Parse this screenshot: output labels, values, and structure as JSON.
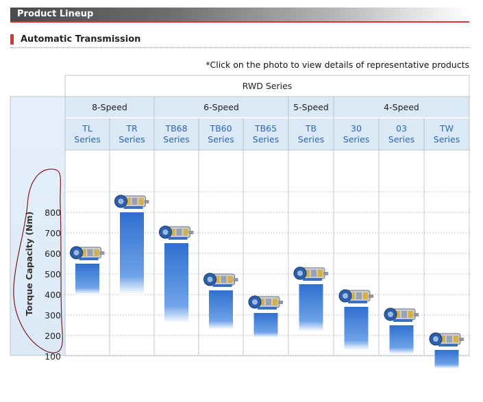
{
  "header": {
    "title": "Product Lineup"
  },
  "section": {
    "title": "Automatic Transmission"
  },
  "note": "*Click on the photo to view details of representative products",
  "chart_data": {
    "type": "bar",
    "group_header": "RWD Series",
    "speed_groups": [
      {
        "label": "8-Speed",
        "span": 2
      },
      {
        "label": "6-Speed",
        "span": 3
      },
      {
        "label": "5-Speed",
        "span": 1
      },
      {
        "label": "4-Speed",
        "span": 3
      }
    ],
    "categories": [
      {
        "name": "TL",
        "sub": "Series"
      },
      {
        "name": "TR",
        "sub": "Series"
      },
      {
        "name": "TB68",
        "sub": "Series"
      },
      {
        "name": "TB60",
        "sub": "Series"
      },
      {
        "name": "TB65",
        "sub": "Series"
      },
      {
        "name": "TB",
        "sub": "Series"
      },
      {
        "name": "30",
        "sub": "Series"
      },
      {
        "name": "03",
        "sub": "Series"
      },
      {
        "name": "TW",
        "sub": "Series"
      }
    ],
    "ranges": [
      [
        400,
        550
      ],
      [
        400,
        800
      ],
      [
        260,
        650
      ],
      [
        230,
        420
      ],
      [
        190,
        310
      ],
      [
        220,
        450
      ],
      [
        130,
        340
      ],
      [
        110,
        250
      ],
      [
        40,
        130
      ]
    ],
    "ylabel": "Torque Capacity (Nm)",
    "yticks": [
      800,
      700,
      600,
      500,
      400,
      300,
      200,
      100
    ],
    "ylim": [
      0,
      900
    ],
    "colors": {
      "bar_top": "#2f6fd0",
      "bar_bottom": "#ffffff",
      "header_bg": "#dbe9f7",
      "link": "#2a67b0"
    }
  }
}
